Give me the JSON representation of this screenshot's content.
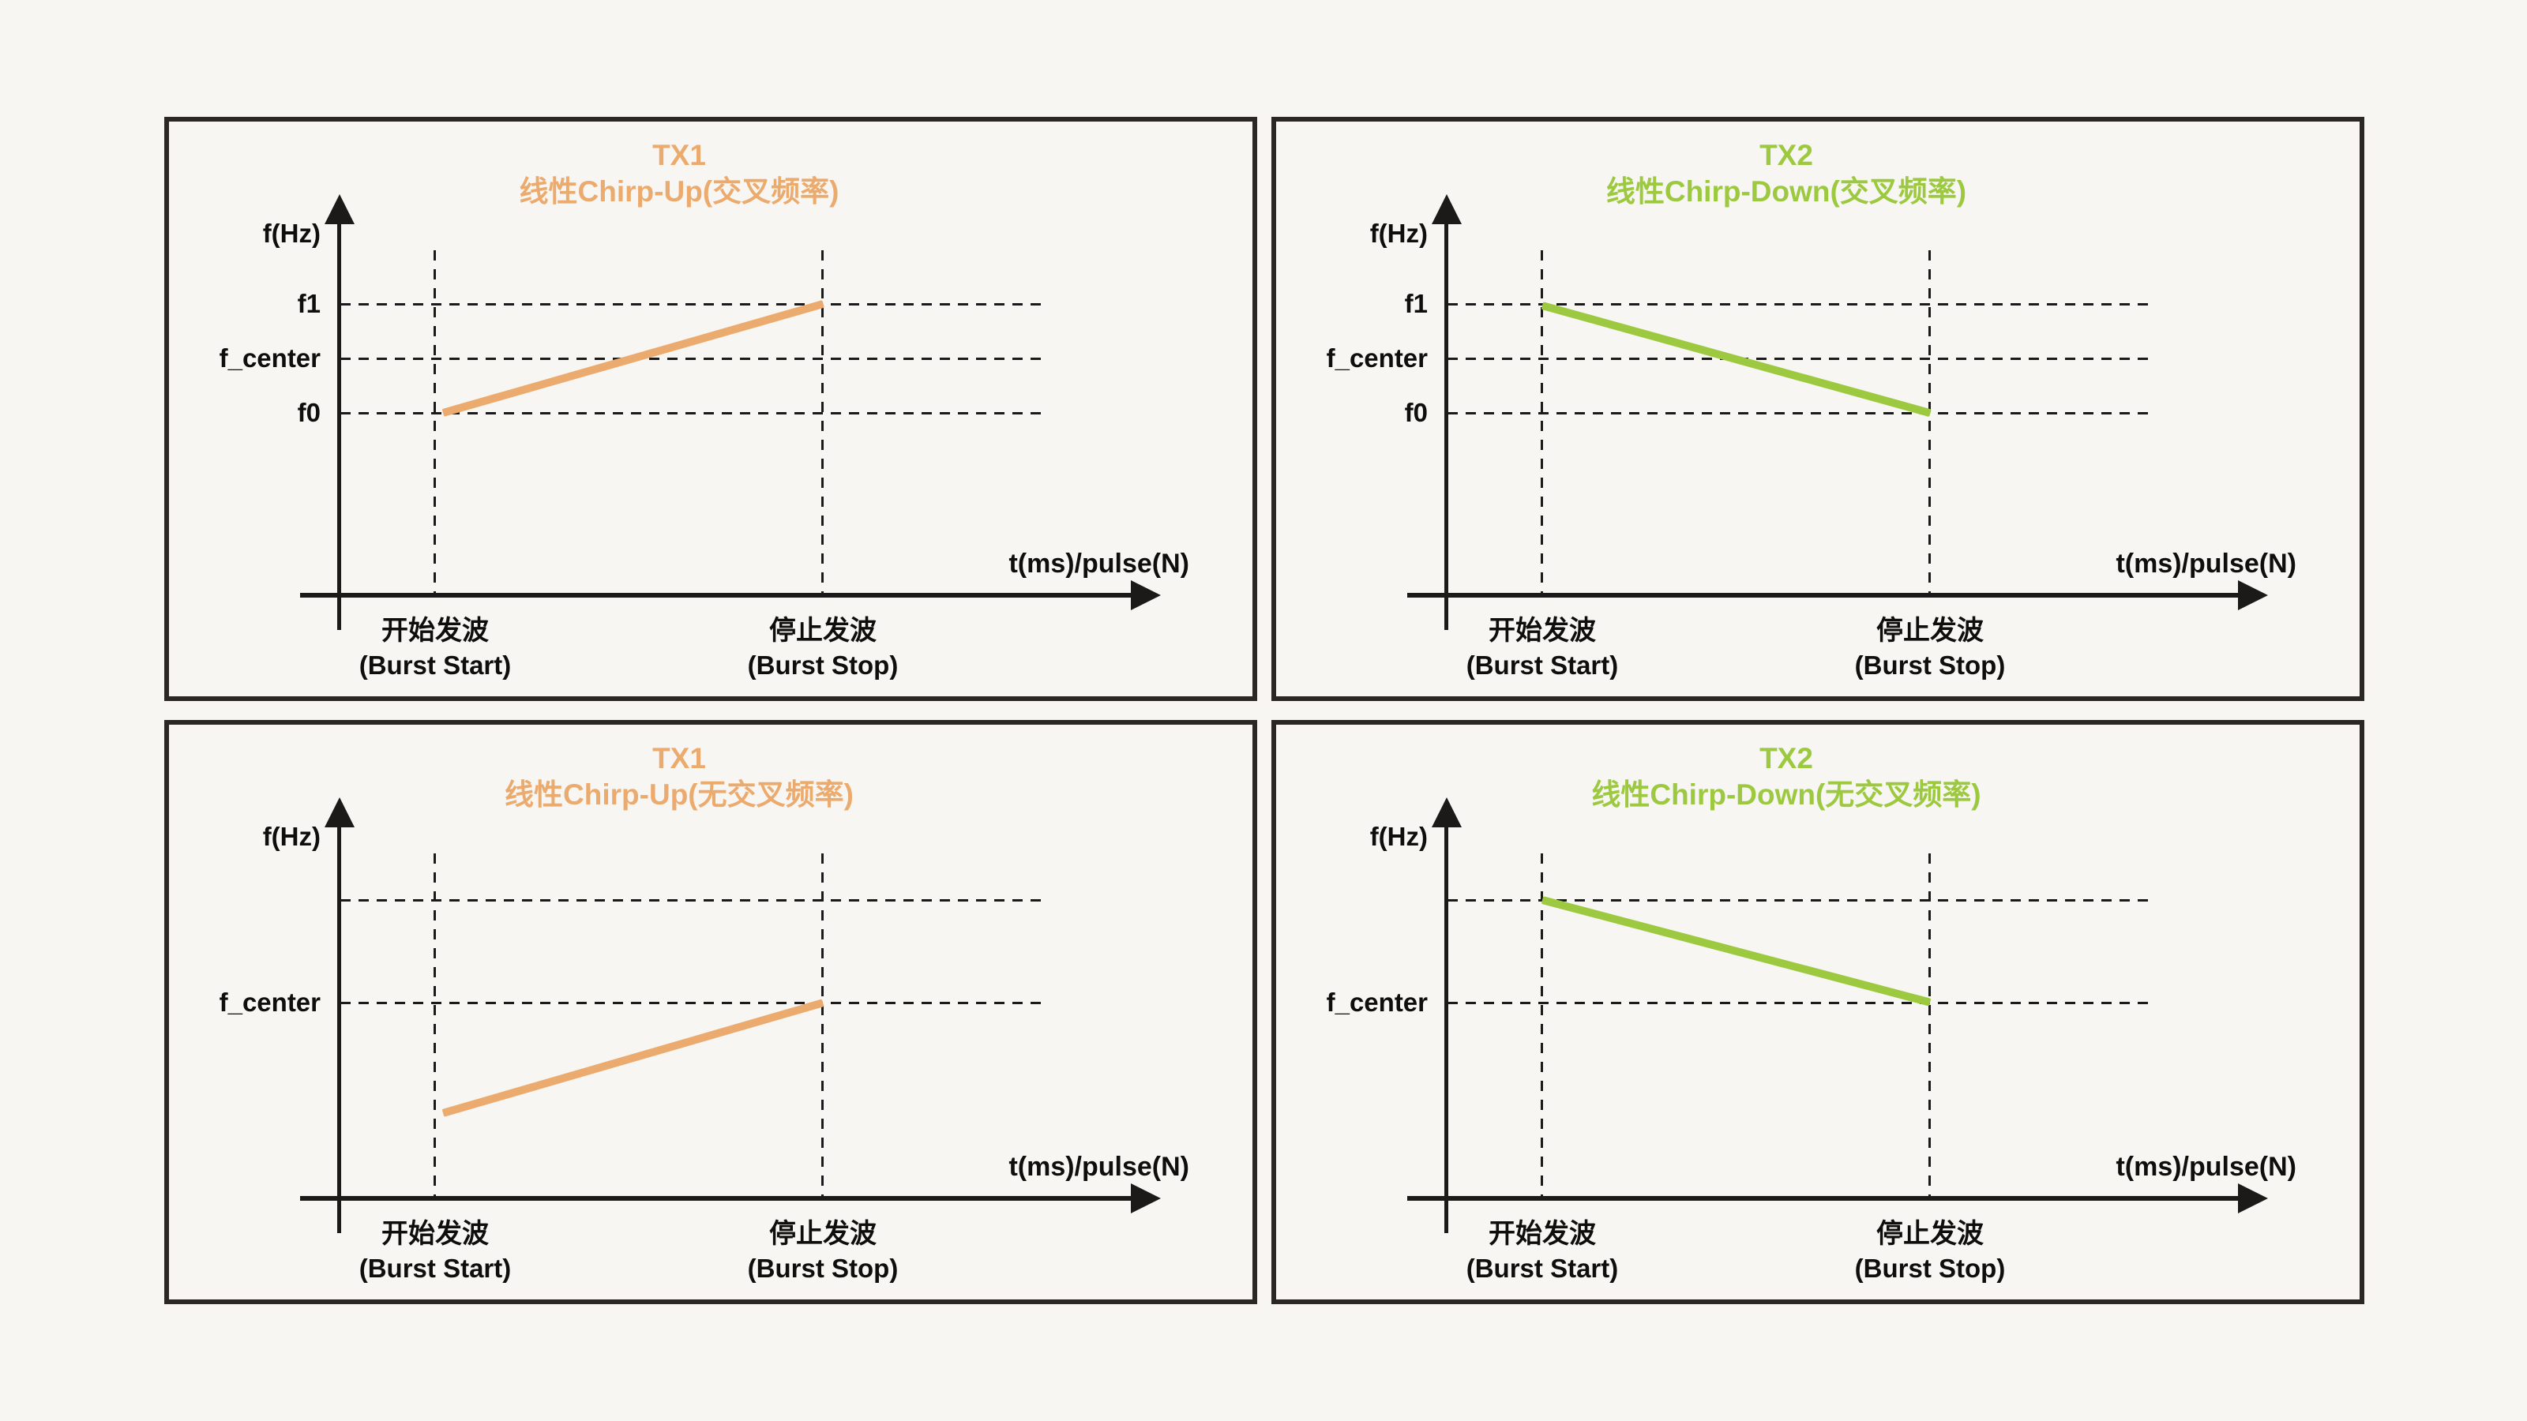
{
  "colors": {
    "background": "#F8F6F3",
    "panel_border": "#2B2824",
    "axis_and_text": "#1C1A18",
    "orange_accent": "#ECAB6E",
    "green_accent": "#9CC93F"
  },
  "shared": {
    "y_axis_label": "f(Hz)",
    "x_axis_label": "t(ms)/pulse(N)",
    "burst_start_cn": "开始发波",
    "burst_start_en": "(Burst Start)",
    "burst_stop_cn": "停止发波",
    "burst_stop_en": "(Burst Stop)"
  },
  "panels": [
    {
      "title": "TX1",
      "subtitle": "线性Chirp-Up(交叉频率)",
      "accent": "#ECAB6E",
      "line_type": "up-crossed",
      "freq_labels": [
        "f1",
        "f_center",
        "f0"
      ]
    },
    {
      "title": "TX2",
      "subtitle": "线性Chirp-Down(交叉频率)",
      "accent": "#9CC93F",
      "line_type": "down-crossed",
      "freq_labels": [
        "f1",
        "f_center",
        "f0"
      ]
    },
    {
      "title": "TX1",
      "subtitle": "线性Chirp-Up(无交叉频率)",
      "accent": "#ECAB6E",
      "line_type": "up-open",
      "freq_labels": [
        "f_center"
      ]
    },
    {
      "title": "TX2",
      "subtitle": "线性Chirp-Down(无交叉频率)",
      "accent": "#9CC93F",
      "line_type": "down-open",
      "freq_labels": [
        "f_center"
      ]
    }
  ],
  "chart_data": [
    {
      "type": "line",
      "title": "TX1 线性Chirp-Up(交叉频率)",
      "xlabel": "t(ms)/pulse(N)",
      "ylabel": "f(Hz)",
      "x_categories": [
        "开始发波 (Burst Start)",
        "停止发波 (Burst Stop)"
      ],
      "series": [
        {
          "name": "TX1 chirp-up",
          "color": "#ECAB6E",
          "start_freq": "f0",
          "end_freq": "f1"
        }
      ],
      "y_gridlines": [
        "f1",
        "f_center",
        "f0"
      ],
      "grid": "dashed"
    },
    {
      "type": "line",
      "title": "TX2 线性Chirp-Down(交叉频率)",
      "xlabel": "t(ms)/pulse(N)",
      "ylabel": "f(Hz)",
      "x_categories": [
        "开始发波 (Burst Start)",
        "停止发波 (Burst Stop)"
      ],
      "series": [
        {
          "name": "TX2 chirp-down",
          "color": "#9CC93F",
          "start_freq": "f1",
          "end_freq": "f0"
        }
      ],
      "y_gridlines": [
        "f1",
        "f_center",
        "f0"
      ],
      "grid": "dashed"
    },
    {
      "type": "line",
      "title": "TX1 线性Chirp-Up(无交叉频率)",
      "xlabel": "t(ms)/pulse(N)",
      "ylabel": "f(Hz)",
      "x_categories": [
        "开始发波 (Burst Start)",
        "停止发波 (Burst Stop)"
      ],
      "series": [
        {
          "name": "TX1 chirp-up",
          "color": "#ECAB6E",
          "start_freq": "below f_center",
          "end_freq": "f_center"
        }
      ],
      "y_gridlines": [
        "f_center",
        "unlabeled line above f_center"
      ],
      "grid": "dashed"
    },
    {
      "type": "line",
      "title": "TX2 线性Chirp-Down(无交叉频率)",
      "xlabel": "t(ms)/pulse(N)",
      "ylabel": "f(Hz)",
      "x_categories": [
        "开始发波 (Burst Start)",
        "停止发波 (Burst Stop)"
      ],
      "series": [
        {
          "name": "TX2 chirp-down",
          "color": "#9CC93F",
          "start_freq": "above f_center",
          "end_freq": "f_center"
        }
      ],
      "y_gridlines": [
        "f_center",
        "unlabeled line above f_center"
      ],
      "grid": "dashed"
    }
  ]
}
